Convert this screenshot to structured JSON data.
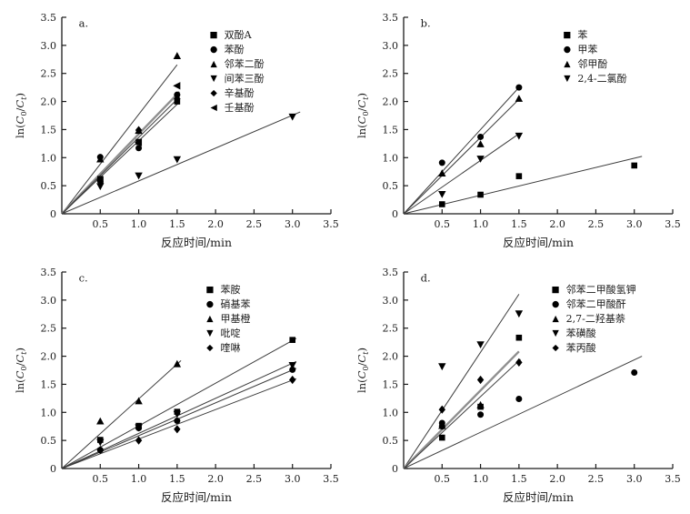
{
  "figure": {
    "background": "#ffffff",
    "axis_color": "#1a1a1a",
    "text_color": "#1a1a1a",
    "marker_color": "#000000",
    "fit_line_color": "#3c3c3c",
    "thick_fit_line_color": "#8f8f8f",
    "xlabel": "反应时间/min",
    "ylabel_parts": {
      "fn": "ln(",
      "c1": "C",
      "s1": "0",
      "div": "/",
      "c2": "C",
      "s2": "t",
      "close": ")"
    },
    "x_ticks": [
      "0.5",
      "1.0",
      "1.5",
      "2.0",
      "2.5",
      "3.0",
      "3.5"
    ],
    "y_ticks": [
      "0",
      "0.5",
      "1.0",
      "1.5",
      "2.0",
      "2.5",
      "3.0",
      "3.5"
    ]
  },
  "chart_data": [
    {
      "type": "scatter",
      "panel_label": "a.",
      "xlabel": "反应时间/min",
      "ylabel": "ln(C0/Ct)",
      "xlim": [
        0,
        3.5
      ],
      "ylim": [
        0,
        3.5
      ],
      "grid": false,
      "legend_position": {
        "x": 1.9,
        "y": 3.3
      },
      "series": [
        {
          "name": "双酚A",
          "marker": "square",
          "points": [
            [
              0.5,
              0.62
            ],
            [
              1.0,
              1.28
            ],
            [
              1.5,
              2.0
            ]
          ]
        },
        {
          "name": "苯酚",
          "marker": "circle",
          "points": [
            [
              0.5,
              1.01
            ],
            [
              1.0,
              1.17
            ],
            [
              1.5,
              2.12
            ]
          ]
        },
        {
          "name": "邻苯二酚",
          "marker": "triangle-up",
          "points": [
            [
              0.5,
              0.97
            ],
            [
              1.0,
              1.48
            ],
            [
              1.5,
              2.81
            ]
          ]
        },
        {
          "name": "间苯三酚",
          "marker": "triangle-down",
          "points": [
            [
              0.5,
              0.49
            ],
            [
              1.0,
              0.68
            ],
            [
              1.5,
              0.97
            ],
            [
              3.0,
              1.73
            ]
          ]
        },
        {
          "name": "辛基酚",
          "marker": "diamond",
          "points": [
            [
              0.5,
              0.57
            ],
            [
              1.0,
              1.49
            ],
            [
              1.5,
              2.05
            ]
          ]
        },
        {
          "name": "壬基酚",
          "marker": "triangle-left",
          "points": [
            [
              0.5,
              0.6
            ],
            [
              1.0,
              1.27
            ],
            [
              1.5,
              2.28
            ]
          ]
        }
      ],
      "fit_lines": [
        {
          "slope": 1.77,
          "x_end": 1.5,
          "width": 1,
          "color": "#3c3c3c"
        },
        {
          "slope": 1.42,
          "x_end": 1.53,
          "width": 2.4,
          "color": "#8f8f8f"
        },
        {
          "slope": 1.36,
          "x_end": 1.53,
          "width": 1,
          "color": "#3c3c3c"
        },
        {
          "slope": 1.3,
          "x_end": 1.53,
          "width": 1,
          "color": "#3c3c3c"
        },
        {
          "slope": 0.585,
          "x_end": 3.1,
          "width": 1,
          "color": "#3c3c3c"
        }
      ]
    },
    {
      "type": "scatter",
      "panel_label": "b.",
      "xlabel": "反应时间/min",
      "ylabel": "ln(C0/Ct)",
      "xlim": [
        0,
        3.5
      ],
      "ylim": [
        0,
        3.5
      ],
      "grid": false,
      "legend_position": {
        "x": 2.05,
        "y": 3.3
      },
      "series": [
        {
          "name": "苯",
          "marker": "square",
          "points": [
            [
              0.5,
              0.17
            ],
            [
              1.0,
              0.34
            ],
            [
              1.5,
              0.67
            ],
            [
              3.0,
              0.86
            ]
          ]
        },
        {
          "name": "甲苯",
          "marker": "circle",
          "points": [
            [
              0.5,
              0.91
            ],
            [
              1.0,
              1.37
            ],
            [
              1.5,
              2.25
            ]
          ]
        },
        {
          "name": "邻甲酚",
          "marker": "triangle-up",
          "points": [
            [
              0.5,
              0.72
            ],
            [
              1.0,
              1.24
            ],
            [
              1.5,
              2.05
            ]
          ]
        },
        {
          "name": "2,4-二氯酚",
          "marker": "triangle-down",
          "points": [
            [
              0.5,
              0.35
            ],
            [
              1.0,
              0.98
            ],
            [
              1.5,
              1.39
            ]
          ]
        }
      ],
      "fit_lines": [
        {
          "slope": 1.5,
          "x_end": 1.5,
          "width": 1,
          "color": "#3c3c3c"
        },
        {
          "slope": 1.36,
          "x_end": 1.5,
          "width": 1,
          "color": "#3c3c3c"
        },
        {
          "slope": 0.95,
          "x_end": 1.5,
          "width": 1,
          "color": "#3c3c3c"
        },
        {
          "slope": 0.33,
          "x_end": 3.1,
          "width": 1,
          "color": "#3c3c3c"
        }
      ]
    },
    {
      "type": "scatter",
      "panel_label": "c.",
      "xlabel": "反应时间/min",
      "ylabel": "ln(C0/Ct)",
      "xlim": [
        0,
        3.5
      ],
      "ylim": [
        0,
        3.5
      ],
      "grid": false,
      "legend_position": {
        "x": 1.85,
        "y": 3.3
      },
      "series": [
        {
          "name": "苯胺",
          "marker": "square",
          "points": [
            [
              0.5,
              0.51
            ],
            [
              1.0,
              0.76
            ],
            [
              1.5,
              1.01
            ],
            [
              3.0,
              2.29
            ]
          ]
        },
        {
          "name": "硝基苯",
          "marker": "circle",
          "points": [
            [
              0.5,
              0.33
            ],
            [
              1.0,
              0.72
            ],
            [
              1.5,
              0.85
            ],
            [
              3.0,
              1.76
            ]
          ]
        },
        {
          "name": "甲基橙",
          "marker": "triangle-up",
          "points": [
            [
              0.5,
              0.84
            ],
            [
              1.0,
              1.2
            ],
            [
              1.5,
              1.86
            ]
          ]
        },
        {
          "name": "吡啶",
          "marker": "triangle-down",
          "points": [
            [
              0.5,
              0.47
            ],
            [
              1.0,
              0.73
            ],
            [
              1.5,
              0.97
            ],
            [
              3.0,
              1.84
            ]
          ]
        },
        {
          "name": "喹啉",
          "marker": "diamond",
          "points": [
            [
              0.5,
              0.33
            ],
            [
              1.0,
              0.5
            ],
            [
              1.5,
              0.7
            ],
            [
              3.0,
              1.58
            ]
          ]
        }
      ],
      "fit_lines": [
        {
          "slope": 1.24,
          "x_end": 1.55,
          "width": 1,
          "color": "#3c3c3c"
        },
        {
          "slope": 0.76,
          "x_end": 3.05,
          "width": 1,
          "color": "#3c3c3c"
        },
        {
          "slope": 0.625,
          "x_end": 3.05,
          "width": 1,
          "color": "#3c3c3c"
        },
        {
          "slope": 0.585,
          "x_end": 3.05,
          "width": 1,
          "color": "#3c3c3c"
        },
        {
          "slope": 0.525,
          "x_end": 3.05,
          "width": 1,
          "color": "#3c3c3c"
        }
      ]
    },
    {
      "type": "scatter",
      "panel_label": "d.",
      "xlabel": "反应时间/min",
      "ylabel": "ln(C0/Ct)",
      "xlim": [
        0,
        3.5
      ],
      "ylim": [
        0,
        3.5
      ],
      "grid": false,
      "legend_position": {
        "x": 1.9,
        "y": 3.3
      },
      "series": [
        {
          "name": "邻苯二甲酸氢钾",
          "marker": "square",
          "points": [
            [
              0.5,
              0.55
            ],
            [
              1.0,
              1.1
            ],
            [
              1.5,
              2.33
            ]
          ]
        },
        {
          "name": "邻苯二甲酸酐",
          "marker": "circle",
          "points": [
            [
              0.5,
              0.75
            ],
            [
              0.5,
              0.81
            ],
            [
              1.0,
              0.96
            ],
            [
              1.5,
              1.24
            ],
            [
              3.0,
              1.71
            ]
          ]
        },
        {
          "name": "2,7-二羟基萘",
          "marker": "triangle-up",
          "points": [
            [
              0.5,
              0.76
            ],
            [
              1.0,
              1.13
            ]
          ]
        },
        {
          "name": "苯磺酸",
          "marker": "triangle-down",
          "points": [
            [
              0.5,
              1.82
            ],
            [
              1.0,
              2.21
            ],
            [
              1.5,
              2.76
            ]
          ]
        },
        {
          "name": "苯丙酸",
          "marker": "diamond",
          "points": [
            [
              0.5,
              1.05
            ],
            [
              1.0,
              1.58
            ],
            [
              1.5,
              1.89
            ]
          ]
        }
      ],
      "fit_lines": [
        {
          "slope": 2.07,
          "x_end": 1.5,
          "width": 1,
          "color": "#3c3c3c"
        },
        {
          "slope": 1.39,
          "x_end": 1.5,
          "width": 2.4,
          "color": "#8f8f8f"
        },
        {
          "slope": 1.28,
          "x_end": 1.52,
          "width": 1,
          "color": "#3c3c3c"
        },
        {
          "slope": 0.645,
          "x_end": 3.1,
          "width": 1,
          "color": "#3c3c3c"
        }
      ]
    }
  ]
}
